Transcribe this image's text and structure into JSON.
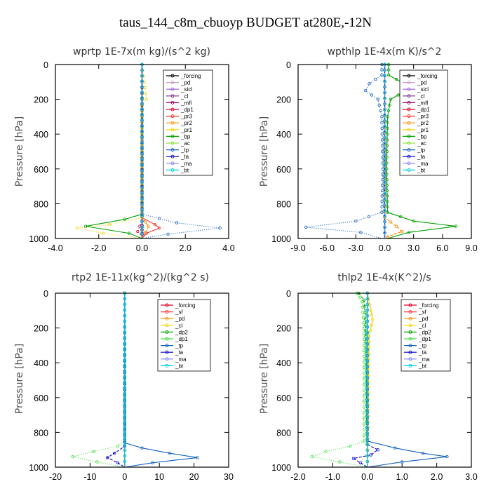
{
  "figure": {
    "title": "taus_144_c8m_cbuoyp  BUDGET at280E,-12N"
  },
  "chart_data": [
    {
      "type": "line",
      "title": "wprtp  1E-7x(m kg)/(s^2 kg)",
      "ylabel": "Pressure [hPa]",
      "xlim": [
        -4.0,
        4.0
      ],
      "ylim": [
        1000,
        0
      ],
      "xticks": [
        "-4.0",
        "-2.0",
        "0.0",
        "2.0",
        "4.0"
      ],
      "yticks": [
        "0",
        "200",
        "400",
        "600",
        "800",
        "1000"
      ],
      "legend": "top-right",
      "series": [
        {
          "name": "_forcing",
          "color": "#000000",
          "points": [
            [
              0,
              0
            ],
            [
              0,
              200
            ],
            [
              0,
              600
            ],
            [
              0,
              850
            ],
            [
              0,
              900
            ],
            [
              0,
              950
            ],
            [
              0,
              1000
            ]
          ]
        },
        {
          "name": "_pd",
          "color": "#c8a2c8",
          "points": [
            [
              0,
              0
            ],
            [
              0,
              1000
            ]
          ]
        },
        {
          "name": "_sicl",
          "color": "#9a5fd6",
          "points": [
            [
              0,
              0
            ],
            [
              0,
              1000
            ]
          ]
        },
        {
          "name": "_cl",
          "color": "#7a2e8c",
          "points": [
            [
              0,
              0
            ],
            [
              0,
              1000
            ]
          ]
        },
        {
          "name": "_mfl",
          "color": "#a0006a",
          "points": [
            [
              0,
              0
            ],
            [
              0,
              1000
            ]
          ]
        },
        {
          "name": "_dp1",
          "color": "#e0002a",
          "points": [
            [
              0,
              0
            ],
            [
              0,
              900
            ],
            [
              -0.2,
              960
            ],
            [
              0,
              1000
            ]
          ]
        },
        {
          "name": "_pr3",
          "color": "#ff3030",
          "points": [
            [
              0,
              0
            ],
            [
              0,
              880
            ],
            [
              0.6,
              920
            ],
            [
              0.8,
              940
            ],
            [
              0.2,
              970
            ],
            [
              0,
              1000
            ]
          ]
        },
        {
          "name": "_pr2",
          "color": "#ff8c00",
          "points": [
            [
              0,
              0
            ],
            [
              0,
              880
            ],
            [
              0.3,
              930
            ],
            [
              0,
              1000
            ]
          ]
        },
        {
          "name": "_pr1",
          "color": "#f5d000",
          "points": [
            [
              0,
              0
            ],
            [
              0.2,
              200
            ],
            [
              0,
              240
            ],
            [
              0,
              880
            ],
            [
              -1.5,
              920
            ],
            [
              -3.0,
              940
            ],
            [
              -1.8,
              970
            ],
            [
              0,
              1000
            ]
          ]
        },
        {
          "name": "_bp",
          "color": "#00a000",
          "points": [
            [
              0,
              0
            ],
            [
              0,
              860
            ],
            [
              -0.8,
              890
            ],
            [
              -2.6,
              930
            ],
            [
              -0.6,
              970
            ],
            [
              0,
              1000
            ]
          ]
        },
        {
          "name": "_ac",
          "color": "#90e040",
          "points": [
            [
              0,
              0
            ],
            [
              0,
              1000
            ]
          ]
        },
        {
          "name": "_tp",
          "color": "#1060c0",
          "points": [
            [
              0,
              0
            ],
            [
              0,
              860
            ],
            [
              1.6,
              910
            ],
            [
              3.6,
              940
            ],
            [
              1.2,
              975
            ],
            [
              0,
              1000
            ]
          ]
        },
        {
          "name": "_ta",
          "color": "#0000c8",
          "points": [
            [
              0,
              0
            ],
            [
              0,
              1000
            ]
          ]
        },
        {
          "name": "_ma",
          "color": "#8080ff",
          "points": [
            [
              0,
              0
            ],
            [
              0,
              1000
            ]
          ]
        },
        {
          "name": "_bt",
          "color": "#00d0e0",
          "points": [
            [
              0,
              0
            ],
            [
              0,
              1000
            ]
          ]
        }
      ]
    },
    {
      "type": "line",
      "title": "wpthlp  1E-4x(m K)/s^2",
      "ylabel": "Pressure [hPa]",
      "xlim": [
        -9.0,
        9.0
      ],
      "ylim": [
        1000,
        0
      ],
      "xticks": [
        "-9.0",
        "-6.0",
        "-3.0",
        "0.0",
        "3.0",
        "6.0",
        "9.0"
      ],
      "yticks": [
        "0",
        "200",
        "400",
        "600",
        "800",
        "1000"
      ],
      "legend": "top-right",
      "series": [
        {
          "name": "_forcing",
          "color": "#000000",
          "points": [
            [
              0,
              0
            ],
            [
              0,
              1000
            ]
          ]
        },
        {
          "name": "_pd",
          "color": "#c8a2c8",
          "points": [
            [
              0,
              0
            ],
            [
              0,
              1000
            ]
          ]
        },
        {
          "name": "_sicl",
          "color": "#9a5fd6",
          "points": [
            [
              0,
              0
            ],
            [
              0,
              1000
            ]
          ]
        },
        {
          "name": "_cl",
          "color": "#7a2e8c",
          "points": [
            [
              0,
              0
            ],
            [
              0,
              1000
            ]
          ]
        },
        {
          "name": "_mfl",
          "color": "#a0006a",
          "points": [
            [
              0,
              0
            ],
            [
              0,
              1000
            ]
          ]
        },
        {
          "name": "_dp1",
          "color": "#e0002a",
          "points": [
            [
              0,
              0
            ],
            [
              0,
              1000
            ]
          ]
        },
        {
          "name": "_pr3",
          "color": "#ff3030",
          "points": [
            [
              0,
              0
            ],
            [
              0,
              1000
            ]
          ]
        },
        {
          "name": "_pr2",
          "color": "#ff8c00",
          "points": [
            [
              0,
              0
            ],
            [
              0,
              880
            ],
            [
              1.2,
              930
            ],
            [
              1.8,
              960
            ],
            [
              0.3,
              990
            ],
            [
              0,
              1000
            ]
          ]
        },
        {
          "name": "_pr1",
          "color": "#f5d000",
          "points": [
            [
              0,
              0
            ],
            [
              0,
              1000
            ]
          ]
        },
        {
          "name": "_bp",
          "color": "#00a000",
          "points": [
            [
              0.4,
              0
            ],
            [
              0.4,
              60
            ],
            [
              2.0,
              110
            ],
            [
              2.2,
              150
            ],
            [
              0.6,
              200
            ],
            [
              0.3,
              300
            ],
            [
              0.2,
              600
            ],
            [
              0.3,
              850
            ],
            [
              3.0,
              900
            ],
            [
              7.4,
              930
            ],
            [
              2.5,
              965
            ],
            [
              0.3,
              1000
            ]
          ]
        },
        {
          "name": "_ac",
          "color": "#90e040",
          "points": [
            [
              0,
              0
            ],
            [
              0,
              1000
            ]
          ]
        },
        {
          "name": "_tp",
          "color": "#1060c0",
          "points": [
            [
              -0.3,
              0
            ],
            [
              -0.3,
              60
            ],
            [
              -1.6,
              110
            ],
            [
              -2.0,
              150
            ],
            [
              -0.7,
              200
            ],
            [
              -0.3,
              300
            ],
            [
              -0.2,
              600
            ],
            [
              -0.3,
              850
            ],
            [
              -3.0,
              900
            ],
            [
              -8.2,
              935
            ],
            [
              -2.5,
              965
            ],
            [
              -0.3,
              1000
            ]
          ]
        },
        {
          "name": "_ta",
          "color": "#0000c8",
          "points": [
            [
              0,
              0
            ],
            [
              0,
              1000
            ]
          ]
        },
        {
          "name": "_ma",
          "color": "#8080ff",
          "points": [
            [
              0,
              0
            ],
            [
              0,
              1000
            ]
          ]
        },
        {
          "name": "_bt",
          "color": "#00d0e0",
          "points": [
            [
              0,
              0
            ],
            [
              0,
              1000
            ]
          ]
        }
      ]
    },
    {
      "type": "line",
      "title": "rtp2  1E-11x(kg^2)/(kg^2 s)",
      "ylabel": "Pressure [hPa]",
      "xlim": [
        -20,
        30
      ],
      "ylim": [
        1000,
        0
      ],
      "xticks": [
        "-20",
        "-10",
        "0",
        "10",
        "20",
        "30"
      ],
      "yticks": [
        "0",
        "200",
        "400",
        "600",
        "800",
        "1000"
      ],
      "legend": "top-right",
      "series": [
        {
          "name": "_forcing",
          "color": "#e0002a",
          "points": [
            [
              0,
              0
            ],
            [
              0,
              1000
            ]
          ]
        },
        {
          "name": "_sf",
          "color": "#ff3030",
          "points": [
            [
              0,
              0
            ],
            [
              0,
              1000
            ]
          ]
        },
        {
          "name": "_pd",
          "color": "#ff8c00",
          "points": [
            [
              0,
              0
            ],
            [
              0,
              1000
            ]
          ]
        },
        {
          "name": "_cl",
          "color": "#f5d000",
          "points": [
            [
              0,
              0
            ],
            [
              0,
              1000
            ]
          ]
        },
        {
          "name": "_dp2",
          "color": "#00a000",
          "points": [
            [
              0,
              0
            ],
            [
              0,
              1000
            ]
          ]
        },
        {
          "name": "_dp1",
          "color": "#40e040",
          "points": [
            [
              0,
              0
            ],
            [
              0,
              850
            ],
            [
              -2,
              880
            ],
            [
              -9,
              910
            ],
            [
              -15,
              940
            ],
            [
              -8,
              970
            ],
            [
              0,
              1000
            ]
          ]
        },
        {
          "name": "_tp",
          "color": "#1060c0",
          "points": [
            [
              0,
              0
            ],
            [
              0,
              860
            ],
            [
              5,
              890
            ],
            [
              13,
              920
            ],
            [
              21,
              945
            ],
            [
              8,
              975
            ],
            [
              0,
              1000
            ]
          ]
        },
        {
          "name": "_ta",
          "color": "#0000c8",
          "points": [
            [
              0,
              0
            ],
            [
              0,
              880
            ],
            [
              -3,
              920
            ],
            [
              -5,
              945
            ],
            [
              -2,
              975
            ],
            [
              0,
              1000
            ]
          ]
        },
        {
          "name": "_ma",
          "color": "#8080ff",
          "points": [
            [
              0,
              0
            ],
            [
              0,
              1000
            ]
          ]
        },
        {
          "name": "_bt",
          "color": "#00d0e0",
          "points": [
            [
              0,
              0
            ],
            [
              0,
              1000
            ]
          ]
        }
      ]
    },
    {
      "type": "line",
      "title": "thlp2  1E-4x(K^2)/s",
      "ylabel": "Pressure [hPa]",
      "xlim": [
        -2.0,
        3.0
      ],
      "ylim": [
        1000,
        0
      ],
      "xticks": [
        "-2.0",
        "-1.0",
        "0.0",
        "1.0",
        "2.0",
        "3.0"
      ],
      "yticks": [
        "0",
        "200",
        "400",
        "600",
        "800",
        "1000"
      ],
      "legend": "top-right",
      "series": [
        {
          "name": "_forcing",
          "color": "#e0002a",
          "points": [
            [
              0,
              0
            ],
            [
              0,
              1000
            ]
          ]
        },
        {
          "name": "_sf",
          "color": "#ff3030",
          "points": [
            [
              0,
              0
            ],
            [
              0,
              1000
            ]
          ]
        },
        {
          "name": "_pd",
          "color": "#ff8c00",
          "points": [
            [
              0,
              0
            ],
            [
              0,
              1000
            ]
          ]
        },
        {
          "name": "_cl",
          "color": "#f5d000",
          "points": [
            [
              0,
              0
            ],
            [
              0.1,
              100
            ],
            [
              0.15,
              150
            ],
            [
              0.05,
              250
            ],
            [
              0,
              1000
            ]
          ]
        },
        {
          "name": "_dp2",
          "color": "#00a000",
          "points": [
            [
              -0.25,
              0
            ],
            [
              -0.1,
              40
            ],
            [
              -0.05,
              150
            ],
            [
              0,
              1000
            ]
          ]
        },
        {
          "name": "_dp1",
          "color": "#40e040",
          "points": [
            [
              -0.3,
              0
            ],
            [
              -0.15,
              50
            ],
            [
              -0.1,
              200
            ],
            [
              -0.1,
              850
            ],
            [
              -0.5,
              880
            ],
            [
              -1.2,
              910
            ],
            [
              -1.6,
              940
            ],
            [
              -0.8,
              970
            ],
            [
              0,
              1000
            ]
          ]
        },
        {
          "name": "_tp",
          "color": "#1060c0",
          "points": [
            [
              0,
              0
            ],
            [
              0,
              850
            ],
            [
              0.8,
              890
            ],
            [
              1.6,
              920
            ],
            [
              2.3,
              940
            ],
            [
              1.0,
              970
            ],
            [
              0,
              1000
            ]
          ]
        },
        {
          "name": "_ta",
          "color": "#0000c8",
          "points": [
            [
              0,
              0
            ],
            [
              0,
              870
            ],
            [
              0.3,
              900
            ],
            [
              0.1,
              930
            ],
            [
              -0.4,
              950
            ],
            [
              -0.2,
              975
            ],
            [
              0,
              1000
            ]
          ]
        },
        {
          "name": "_ma",
          "color": "#8080ff",
          "points": [
            [
              0,
              0
            ],
            [
              0,
              1000
            ]
          ]
        },
        {
          "name": "_bt",
          "color": "#00d0e0",
          "points": [
            [
              0,
              0
            ],
            [
              0,
              1000
            ]
          ]
        }
      ]
    }
  ]
}
